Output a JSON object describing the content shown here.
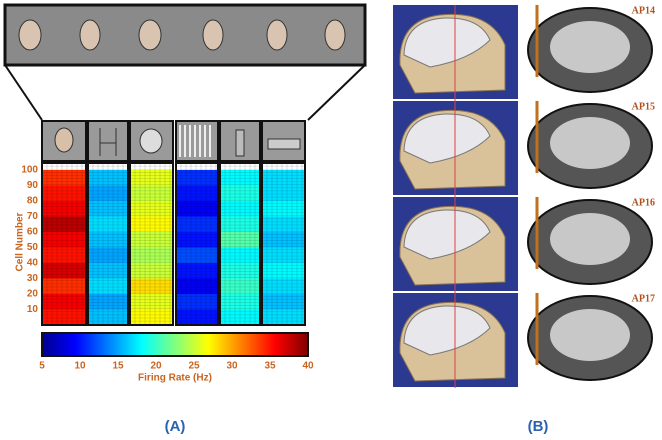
{
  "panel_a": {
    "label": "(A)",
    "heatmap": {
      "type": "heatmap",
      "y_label": "Cell Number",
      "ylim": [
        0,
        100
      ],
      "yticks": [
        10,
        20,
        30,
        40,
        50,
        60,
        70,
        80,
        90,
        100
      ],
      "series": [
        {
          "values": [
            35,
            36,
            34,
            37,
            35,
            36,
            38,
            36,
            35,
            34
          ]
        },
        {
          "values": [
            16,
            15,
            17,
            16,
            15,
            16,
            17,
            16,
            15,
            16
          ]
        },
        {
          "values": [
            27,
            26,
            28,
            25,
            24,
            25,
            27,
            26,
            25,
            26
          ]
        },
        {
          "values": [
            10,
            11,
            9,
            10,
            12,
            10,
            11,
            9,
            10,
            11
          ]
        },
        {
          "values": [
            18,
            19,
            20,
            19,
            18,
            21,
            19,
            18,
            19,
            18
          ]
        },
        {
          "values": [
            17,
            16,
            17,
            18,
            17,
            16,
            17,
            18,
            17,
            17
          ]
        }
      ],
      "colorbar": {
        "label": "Firing Rate (Hz)",
        "lim": [
          5,
          40
        ],
        "ticks": [
          5,
          10,
          15,
          20,
          25,
          30,
          35,
          40
        ]
      }
    }
  },
  "panel_b": {
    "label": "(B)",
    "slices": [
      "AP14",
      "AP15",
      "AP16",
      "AP17"
    ]
  }
}
